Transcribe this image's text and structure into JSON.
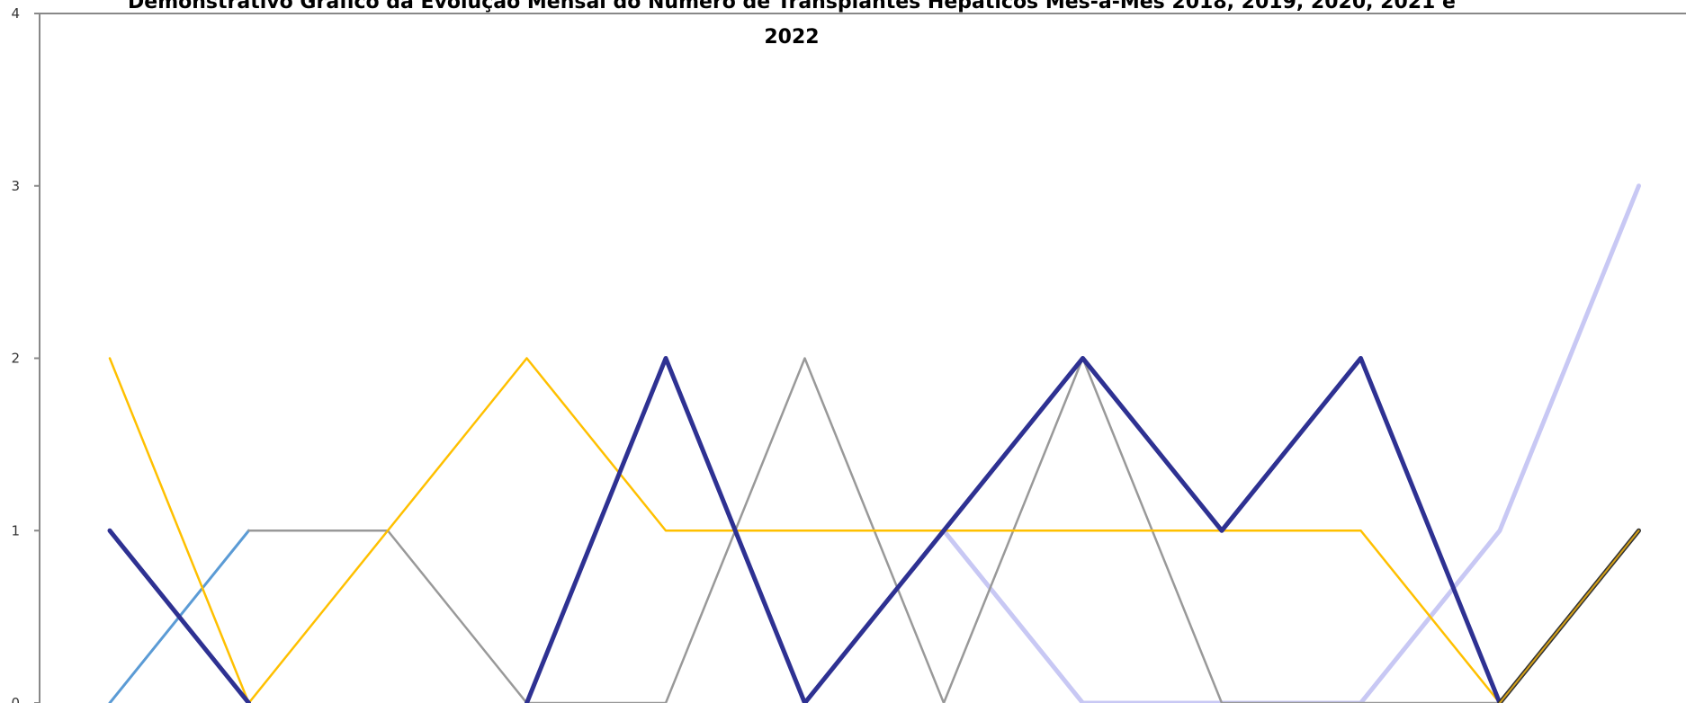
{
  "chart_data": {
    "type": "line",
    "title_lines": [
      "Demonstrativo Gráfico da Evolução Mensal do Número de Transplantes Hepáticos Mês-a-Mês 2018, 2019, 2020, 2021 e",
      "2022"
    ],
    "ylim": [
      0,
      4
    ],
    "yticks": [
      "0",
      "1",
      "2",
      "3",
      "4"
    ],
    "grid": false,
    "x": [
      1,
      2,
      3,
      4,
      5,
      6,
      7,
      8,
      9,
      10,
      11,
      12
    ],
    "series": [
      {
        "color": "#C8C8F4",
        "width": 5,
        "values": [
          null,
          null,
          null,
          null,
          null,
          null,
          1,
          0,
          0,
          0,
          1,
          3
        ]
      },
      {
        "color": "#5B9BD5",
        "width": 3,
        "values": [
          0,
          1,
          null,
          null,
          null,
          null,
          null,
          null,
          null,
          null,
          null,
          null
        ]
      },
      {
        "color": "#999999",
        "width": 2.5,
        "values": [
          null,
          1,
          1,
          0,
          0,
          2,
          0,
          2,
          0,
          0,
          0,
          1
        ]
      },
      {
        "color": "#FFC000",
        "width": 2.5,
        "values": [
          2,
          0,
          1,
          2,
          1,
          1,
          1,
          1,
          1,
          1,
          0,
          1
        ]
      },
      {
        "color": "#2E3192",
        "width": 5,
        "values": [
          1,
          0,
          null,
          0,
          2,
          0,
          1,
          2,
          1,
          2,
          0,
          null
        ]
      },
      {
        "color": "#333333",
        "width": 5,
        "values": [
          null,
          null,
          null,
          null,
          null,
          null,
          null,
          null,
          null,
          null,
          0,
          1
        ]
      },
      {
        "color": "#D4A017",
        "width": 2,
        "values": [
          null,
          null,
          null,
          null,
          null,
          null,
          null,
          null,
          null,
          null,
          0,
          1
        ]
      }
    ]
  }
}
